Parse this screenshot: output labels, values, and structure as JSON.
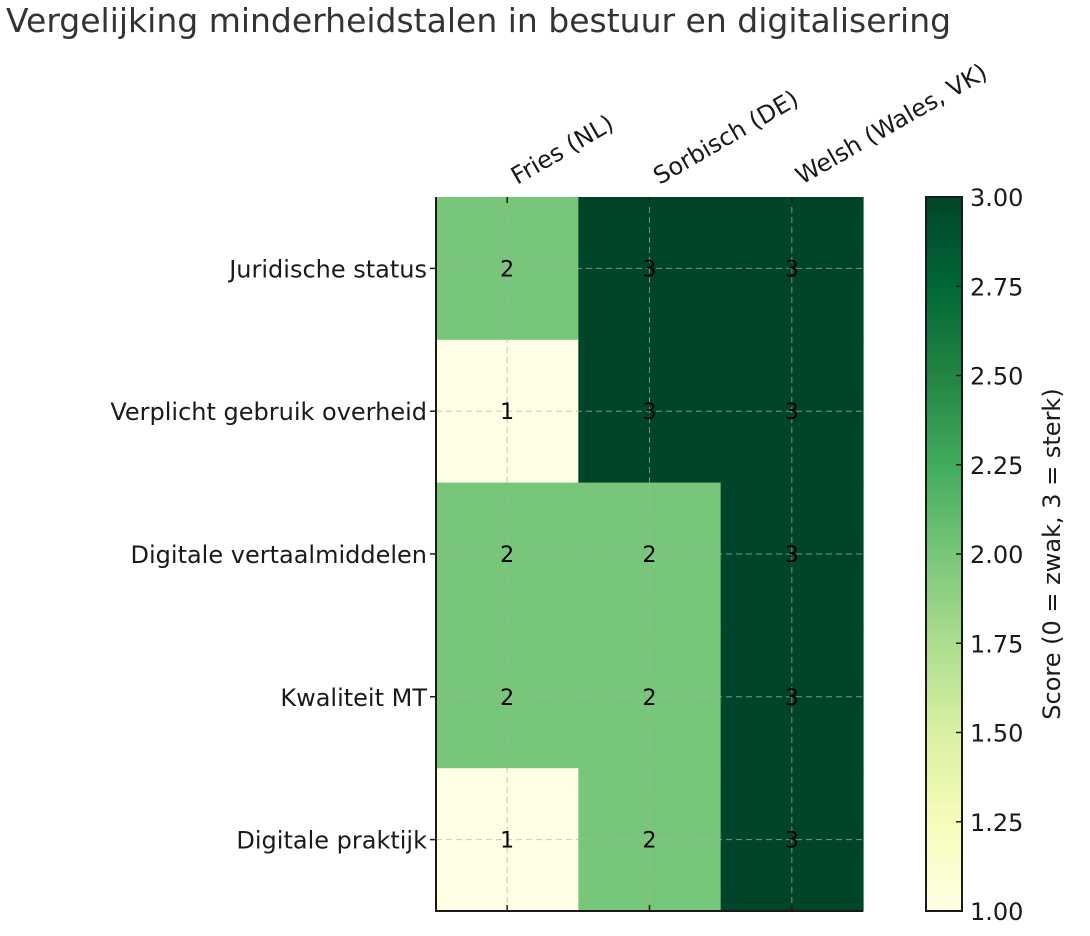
{
  "chart_data": {
    "type": "heatmap",
    "title": "Vergelijking minderheidstalen in bestuur en digitalisering",
    "columns": [
      "Fries (NL)",
      "Sorbisch (DE)",
      "Welsh (Wales, VK)"
    ],
    "rows": [
      "Juridische status",
      "Verplicht gebruik overheid",
      "Digitale vertaalmiddelen",
      "Kwaliteit MT",
      "Digitale praktijk"
    ],
    "values": [
      [
        2,
        3,
        3
      ],
      [
        1,
        3,
        3
      ],
      [
        2,
        2,
        3
      ],
      [
        2,
        2,
        3
      ],
      [
        1,
        2,
        3
      ]
    ],
    "colormap": "YlGn",
    "colors": {
      "1": "#ffffe5",
      "2": "#78c679",
      "3": "#004529"
    },
    "colorbar": {
      "label": "Score (0 = zwak, 3 = sterk)",
      "range": [
        1.0,
        3.0
      ],
      "ticks": [
        "1.00",
        "1.25",
        "1.50",
        "1.75",
        "2.00",
        "2.25",
        "2.50",
        "2.75",
        "3.00"
      ]
    },
    "grid": true
  }
}
